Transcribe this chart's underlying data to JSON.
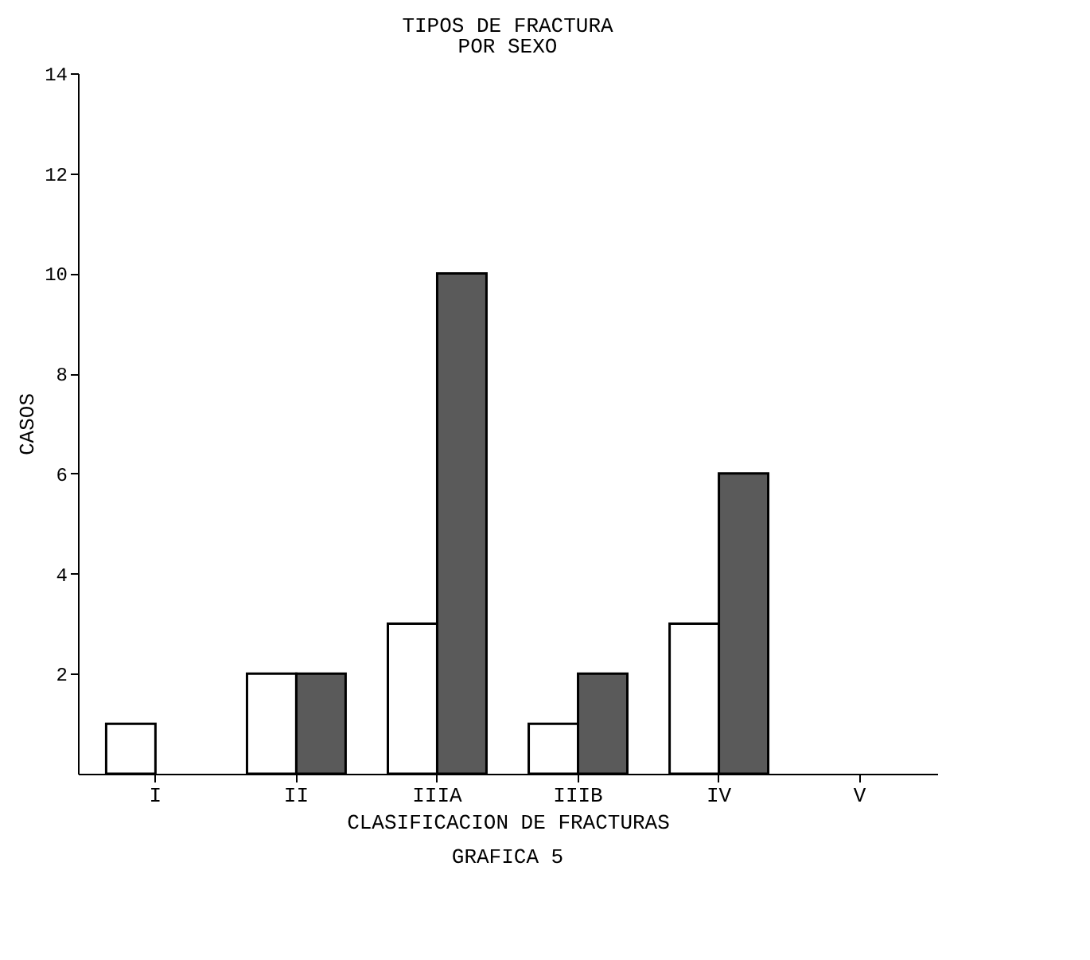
{
  "chart_data": {
    "type": "bar",
    "title": "TIPOS DE FRACTURA",
    "subtitle": "POR SEXO",
    "xlabel": "CLASIFICACION DE FRACTURAS",
    "ylabel": "CASOS",
    "annotations": [
      "GRAFICA 5"
    ],
    "categories": [
      "I",
      "II",
      "IIIA",
      "IIIB",
      "IV",
      "V"
    ],
    "series": [
      {
        "color": "#ffffff",
        "values": [
          1,
          2,
          3,
          1,
          3,
          null
        ]
      },
      {
        "color": "#5a5a5a",
        "values": [
          null,
          2,
          10,
          2,
          6,
          null
        ]
      }
    ],
    "ylim": [
      0,
      14
    ],
    "yticks": [
      2,
      4,
      6,
      8,
      10,
      12,
      14
    ],
    "grid": false,
    "legend": false
  }
}
